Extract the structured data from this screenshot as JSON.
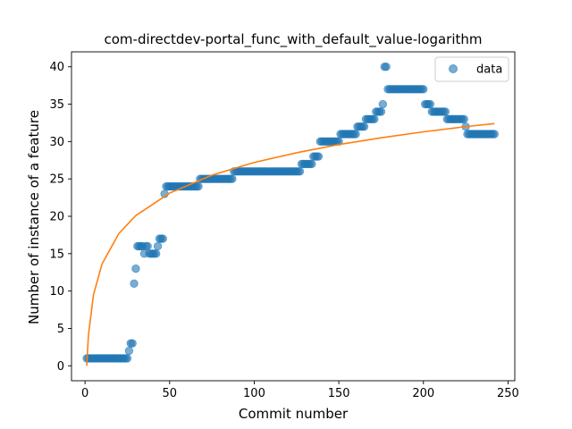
{
  "chart_data": {
    "type": "scatter",
    "title": "com-directdev-portal_func_with_default_value-logarithm",
    "xlabel": "Commit number",
    "ylabel": "Number of instance of a feature",
    "xlim": [
      -8,
      254
    ],
    "ylim": [
      -2,
      42
    ],
    "xticks": [
      0,
      50,
      100,
      150,
      200,
      250
    ],
    "yticks": [
      0,
      5,
      10,
      15,
      20,
      25,
      30,
      35,
      40
    ],
    "grid": false,
    "legend": {
      "placement": "top-right",
      "entries": [
        "data"
      ]
    },
    "colors": {
      "data": "#1f77b4",
      "fit": "#ff7f0e"
    },
    "series": [
      {
        "name": "data",
        "kind": "scatter",
        "segments": [
          {
            "x_from": 1,
            "x_to": 25,
            "y": 1
          },
          {
            "x_from": 26,
            "x_to": 26,
            "y": 2
          },
          {
            "x_from": 27,
            "x_to": 28,
            "y": 3
          },
          {
            "x_from": 29,
            "x_to": 29,
            "y": 11
          },
          {
            "x_from": 30,
            "x_to": 30,
            "y": 13
          },
          {
            "x_from": 31,
            "x_to": 34,
            "y": 16
          },
          {
            "x_from": 35,
            "x_to": 35,
            "y": 15
          },
          {
            "x_from": 36,
            "x_to": 37,
            "y": 16
          },
          {
            "x_from": 38,
            "x_to": 42,
            "y": 15
          },
          {
            "x_from": 43,
            "x_to": 43,
            "y": 16
          },
          {
            "x_from": 44,
            "x_to": 46,
            "y": 17
          },
          {
            "x_from": 47,
            "x_to": 47,
            "y": 23
          },
          {
            "x_from": 48,
            "x_to": 67,
            "y": 24
          },
          {
            "x_from": 68,
            "x_to": 87,
            "y": 25
          },
          {
            "x_from": 88,
            "x_to": 127,
            "y": 26
          },
          {
            "x_from": 128,
            "x_to": 134,
            "y": 27
          },
          {
            "x_from": 135,
            "x_to": 138,
            "y": 28
          },
          {
            "x_from": 139,
            "x_to": 150,
            "y": 30
          },
          {
            "x_from": 151,
            "x_to": 160,
            "y": 31
          },
          {
            "x_from": 161,
            "x_to": 165,
            "y": 32
          },
          {
            "x_from": 166,
            "x_to": 171,
            "y": 33
          },
          {
            "x_from": 172,
            "x_to": 175,
            "y": 34
          },
          {
            "x_from": 176,
            "x_to": 176,
            "y": 35
          },
          {
            "x_from": 177,
            "x_to": 178,
            "y": 40
          },
          {
            "x_from": 179,
            "x_to": 200,
            "y": 37
          },
          {
            "x_from": 201,
            "x_to": 204,
            "y": 35
          },
          {
            "x_from": 205,
            "x_to": 213,
            "y": 34
          },
          {
            "x_from": 214,
            "x_to": 224,
            "y": 33
          },
          {
            "x_from": 225,
            "x_to": 225,
            "y": 32
          },
          {
            "x_from": 226,
            "x_to": 242,
            "y": 31
          }
        ]
      },
      {
        "kind": "line",
        "curve": "logarithmic",
        "points": [
          [
            1,
            0
          ],
          [
            2,
            4.1
          ],
          [
            5,
            9.5
          ],
          [
            10,
            13.6
          ],
          [
            20,
            17.7
          ],
          [
            30,
            20.1
          ],
          [
            50,
            23.1
          ],
          [
            75,
            25.5
          ],
          [
            100,
            27.2
          ],
          [
            125,
            28.5
          ],
          [
            150,
            29.6
          ],
          [
            175,
            30.5
          ],
          [
            200,
            31.3
          ],
          [
            225,
            32.0
          ],
          [
            242,
            32.4
          ]
        ]
      }
    ]
  }
}
